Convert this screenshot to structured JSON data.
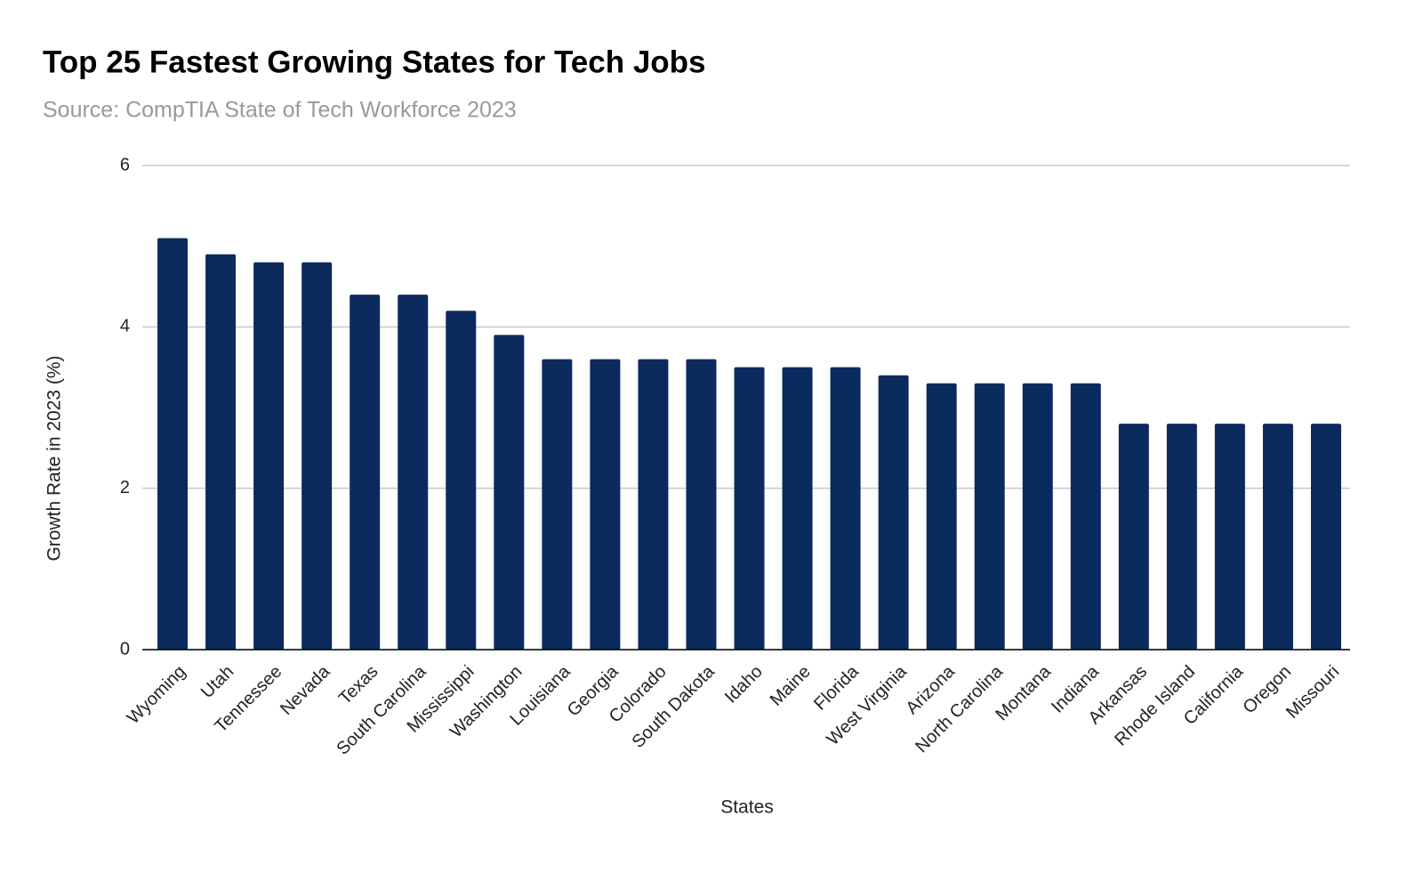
{
  "chart_data": {
    "type": "bar",
    "title": "Top 25 Fastest Growing States for Tech Jobs",
    "subtitle": "Source: CompTIA State of Tech Workforce 2023",
    "x_label": "States",
    "y_label": "Growth Rate in 2023 (%)",
    "categories": [
      "Wyoming",
      "Utah",
      "Tennessee",
      "Nevada",
      "Texas",
      "South Carolina",
      "Mississippi",
      "Washington",
      "Louisiana",
      "Georgia",
      "Colorado",
      "South Dakota",
      "Idaho",
      "Maine",
      "Florida",
      "West Virginia",
      "Arizona",
      "North Carolina",
      "Montana",
      "Indiana",
      "Arkansas",
      "Rhode Island",
      "California",
      "Oregon",
      "Missouri"
    ],
    "values": [
      5.1,
      4.9,
      4.8,
      4.8,
      4.4,
      4.4,
      4.2,
      3.9,
      3.6,
      3.6,
      3.6,
      3.6,
      3.5,
      3.5,
      3.5,
      3.4,
      3.3,
      3.3,
      3.3,
      3.3,
      2.8,
      2.8,
      2.8,
      2.8,
      2.8
    ],
    "color": "#0b2a5e",
    "ylim": [
      0,
      6
    ],
    "yticks": [
      0,
      2,
      4,
      6
    ],
    "grid": true
  }
}
